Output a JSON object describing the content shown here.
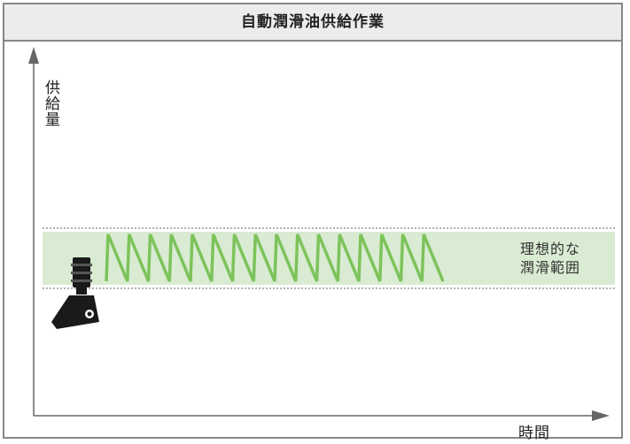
{
  "diagram": {
    "title": "自動潤滑油供給作業",
    "y_axis_label": "供給量",
    "x_axis_label": "時間",
    "range_label_line1": "理想的な",
    "range_label_line2": "潤滑範囲",
    "zigzag_peaks": 16,
    "colors": {
      "band_fill": "#d9ebd2",
      "zigzag": "#7cc35a",
      "axis": "#666666",
      "frame": "#888888",
      "title_bar": "#ececec",
      "dotted_line": "#999999",
      "lubricator": "#1a1a1a"
    },
    "icons": [
      "lubricator-icon"
    ]
  }
}
